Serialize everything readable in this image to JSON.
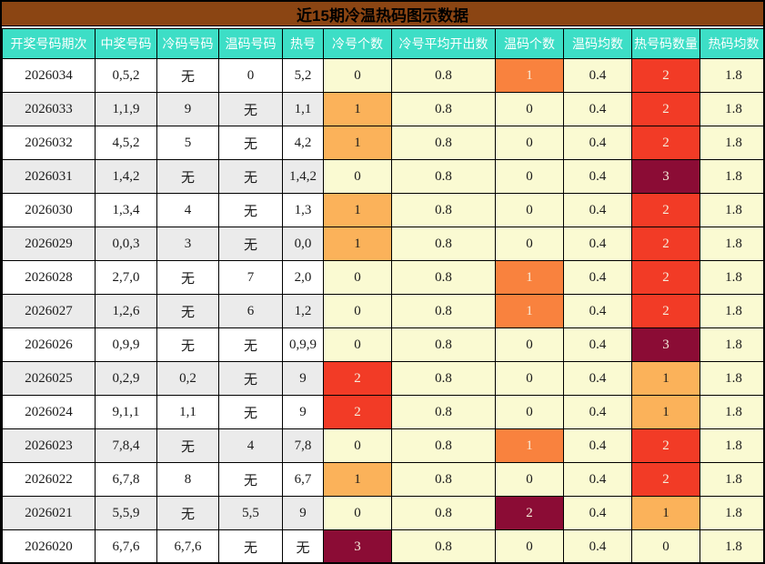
{
  "title": "近15期冷温热码图示数据",
  "colors": {
    "title_bg": "#8B4513",
    "header_bg": "#3DDEC6",
    "base_yellow": "#FAFAD2",
    "stripe_gray": "#EBEBEB",
    "level_1_light_orange": "#FBB25A",
    "level_2_orange": "#F9823E",
    "level_3_red": "#F23B26",
    "level_4_maroon": "#8B0C35",
    "border": "#000000"
  },
  "chart_data": {
    "type": "table",
    "title": "近15期冷温热码图示数据",
    "columns": [
      "开奖号码期次",
      "中奖号码",
      "冷码号码",
      "温码号码",
      "热号",
      "冷号个数",
      "冷号平均开出数",
      "温码个数",
      "温码均数",
      "热号码数量",
      "热码均数"
    ],
    "rows": [
      {
        "period": "2026034",
        "win": "0,5,2",
        "cold": "无",
        "warm": "0",
        "hot": "5,2",
        "cold_cnt": "0",
        "cold_cls": "c0",
        "cold_avg": "0.8",
        "warm_cnt": "1",
        "warm_cls": "c2",
        "warm_avg": "0.4",
        "hot_cnt": "2",
        "hot_cls": "c3",
        "hot_avg": "1.8"
      },
      {
        "period": "2026033",
        "win": "1,1,9",
        "cold": "9",
        "warm": "无",
        "hot": "1,1",
        "cold_cnt": "1",
        "cold_cls": "c1",
        "cold_avg": "0.8",
        "warm_cnt": "0",
        "warm_cls": "c0",
        "warm_avg": "0.4",
        "hot_cnt": "2",
        "hot_cls": "c3",
        "hot_avg": "1.8"
      },
      {
        "period": "2026032",
        "win": "4,5,2",
        "cold": "5",
        "warm": "无",
        "hot": "4,2",
        "cold_cnt": "1",
        "cold_cls": "c1",
        "cold_avg": "0.8",
        "warm_cnt": "0",
        "warm_cls": "c0",
        "warm_avg": "0.4",
        "hot_cnt": "2",
        "hot_cls": "c3",
        "hot_avg": "1.8"
      },
      {
        "period": "2026031",
        "win": "1,4,2",
        "cold": "无",
        "warm": "无",
        "hot": "1,4,2",
        "cold_cnt": "0",
        "cold_cls": "c0",
        "cold_avg": "0.8",
        "warm_cnt": "0",
        "warm_cls": "c0",
        "warm_avg": "0.4",
        "hot_cnt": "3",
        "hot_cls": "c4",
        "hot_avg": "1.8"
      },
      {
        "period": "2026030",
        "win": "1,3,4",
        "cold": "4",
        "warm": "无",
        "hot": "1,3",
        "cold_cnt": "1",
        "cold_cls": "c1",
        "cold_avg": "0.8",
        "warm_cnt": "0",
        "warm_cls": "c0",
        "warm_avg": "0.4",
        "hot_cnt": "2",
        "hot_cls": "c3",
        "hot_avg": "1.8"
      },
      {
        "period": "2026029",
        "win": "0,0,3",
        "cold": "3",
        "warm": "无",
        "hot": "0,0",
        "cold_cnt": "1",
        "cold_cls": "c1",
        "cold_avg": "0.8",
        "warm_cnt": "0",
        "warm_cls": "c0",
        "warm_avg": "0.4",
        "hot_cnt": "2",
        "hot_cls": "c3",
        "hot_avg": "1.8"
      },
      {
        "period": "2026028",
        "win": "2,7,0",
        "cold": "无",
        "warm": "7",
        "hot": "2,0",
        "cold_cnt": "0",
        "cold_cls": "c0",
        "cold_avg": "0.8",
        "warm_cnt": "1",
        "warm_cls": "c2",
        "warm_avg": "0.4",
        "hot_cnt": "2",
        "hot_cls": "c3",
        "hot_avg": "1.8"
      },
      {
        "period": "2026027",
        "win": "1,2,6",
        "cold": "无",
        "warm": "6",
        "hot": "1,2",
        "cold_cnt": "0",
        "cold_cls": "c0",
        "cold_avg": "0.8",
        "warm_cnt": "1",
        "warm_cls": "c2",
        "warm_avg": "0.4",
        "hot_cnt": "2",
        "hot_cls": "c3",
        "hot_avg": "1.8"
      },
      {
        "period": "2026026",
        "win": "0,9,9",
        "cold": "无",
        "warm": "无",
        "hot": "0,9,9",
        "cold_cnt": "0",
        "cold_cls": "c0",
        "cold_avg": "0.8",
        "warm_cnt": "0",
        "warm_cls": "c0",
        "warm_avg": "0.4",
        "hot_cnt": "3",
        "hot_cls": "c4",
        "hot_avg": "1.8"
      },
      {
        "period": "2026025",
        "win": "0,2,9",
        "cold": "0,2",
        "warm": "无",
        "hot": "9",
        "cold_cnt": "2",
        "cold_cls": "c3",
        "cold_avg": "0.8",
        "warm_cnt": "0",
        "warm_cls": "c0",
        "warm_avg": "0.4",
        "hot_cnt": "1",
        "hot_cls": "c1",
        "hot_avg": "1.8"
      },
      {
        "period": "2026024",
        "win": "9,1,1",
        "cold": "1,1",
        "warm": "无",
        "hot": "9",
        "cold_cnt": "2",
        "cold_cls": "c3",
        "cold_avg": "0.8",
        "warm_cnt": "0",
        "warm_cls": "c0",
        "warm_avg": "0.4",
        "hot_cnt": "1",
        "hot_cls": "c1",
        "hot_avg": "1.8"
      },
      {
        "period": "2026023",
        "win": "7,8,4",
        "cold": "无",
        "warm": "4",
        "hot": "7,8",
        "cold_cnt": "0",
        "cold_cls": "c0",
        "cold_avg": "0.8",
        "warm_cnt": "1",
        "warm_cls": "c2",
        "warm_avg": "0.4",
        "hot_cnt": "2",
        "hot_cls": "c3",
        "hot_avg": "1.8"
      },
      {
        "period": "2026022",
        "win": "6,7,8",
        "cold": "8",
        "warm": "无",
        "hot": "6,7",
        "cold_cnt": "1",
        "cold_cls": "c1",
        "cold_avg": "0.8",
        "warm_cnt": "0",
        "warm_cls": "c0",
        "warm_avg": "0.4",
        "hot_cnt": "2",
        "hot_cls": "c3",
        "hot_avg": "1.8"
      },
      {
        "period": "2026021",
        "win": "5,5,9",
        "cold": "无",
        "warm": "5,5",
        "hot": "9",
        "cold_cnt": "0",
        "cold_cls": "c0",
        "cold_avg": "0.8",
        "warm_cnt": "2",
        "warm_cls": "c4",
        "warm_avg": "0.4",
        "hot_cnt": "1",
        "hot_cls": "c1",
        "hot_avg": "1.8"
      },
      {
        "period": "2026020",
        "win": "6,7,6",
        "cold": "6,7,6",
        "warm": "无",
        "hot": "无",
        "cold_cnt": "3",
        "cold_cls": "c4",
        "cold_avg": "0.8",
        "warm_cnt": "0",
        "warm_cls": "c0",
        "warm_avg": "0.4",
        "hot_cnt": "0",
        "hot_cls": "c0",
        "hot_avg": "1.8"
      }
    ]
  }
}
